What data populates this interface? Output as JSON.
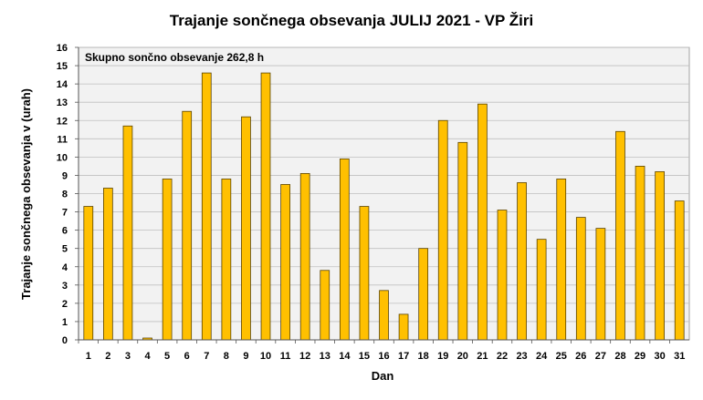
{
  "chart_data": {
    "type": "bar",
    "title": "Trajanje  sončnega obsevanja  JULIJ 2021 - VP Žiri",
    "xlabel": "Dan",
    "ylabel": "Trajanje  sončnega obsevanja  v (urah)",
    "annotation": "Skupno sončno obsevanje 262,8 h",
    "categories": [
      "1",
      "2",
      "3",
      "4",
      "5",
      "6",
      "7",
      "8",
      "9",
      "10",
      "11",
      "12",
      "13",
      "14",
      "15",
      "16",
      "17",
      "18",
      "19",
      "20",
      "21",
      "22",
      "23",
      "24",
      "25",
      "26",
      "27",
      "28",
      "29",
      "30",
      "31"
    ],
    "values": [
      7.3,
      8.3,
      11.7,
      0.1,
      8.8,
      12.5,
      14.6,
      8.8,
      12.2,
      14.6,
      8.5,
      9.1,
      3.8,
      9.9,
      7.3,
      2.7,
      1.4,
      5.0,
      12.0,
      10.8,
      12.9,
      7.1,
      8.6,
      5.5,
      8.8,
      6.7,
      6.1,
      11.4,
      9.5,
      9.2,
      7.6
    ],
    "ylim": [
      0,
      16
    ],
    "yticks": [
      0,
      1,
      2,
      3,
      4,
      5,
      6,
      7,
      8,
      9,
      10,
      11,
      12,
      13,
      14,
      15,
      16
    ],
    "grid": true,
    "colors": {
      "bar_fill": "#FFC000",
      "bar_stroke": "#5a4300",
      "plot_bg": "#F2F2F2",
      "grid": "#bfbfbf"
    }
  }
}
